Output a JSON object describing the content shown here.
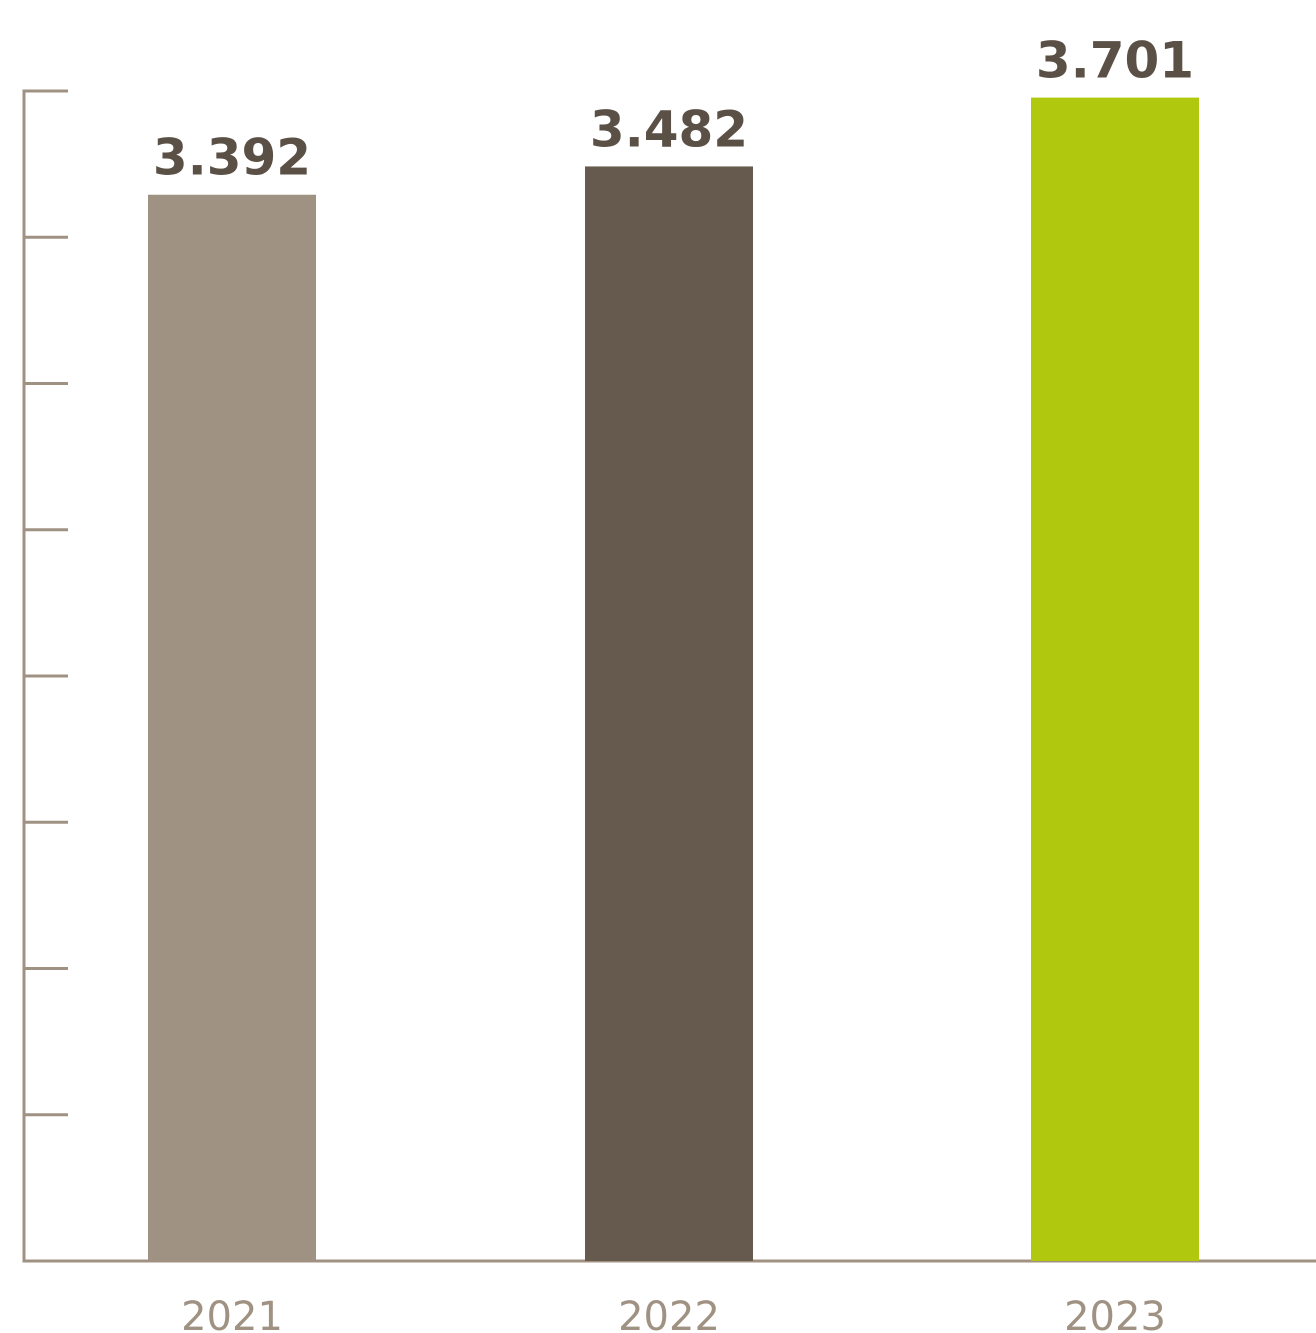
{
  "chart_data": {
    "type": "bar",
    "categories": [
      "2021",
      "2022",
      "2023"
    ],
    "values": [
      3392,
      3482,
      3701
    ],
    "value_labels": [
      "3.392",
      "3.482",
      "3.701"
    ],
    "title": "",
    "xlabel": "",
    "ylabel": "",
    "ylim": [
      0,
      3722
    ],
    "y_tick_count": 8,
    "y_tick_labels_shown": false,
    "grid": false,
    "legend": "none",
    "colors": {
      "bars": [
        "#a09283",
        "#665a4e",
        "#b0c90f"
      ],
      "value_labels": "#5b5045",
      "category_labels": "#a09283",
      "axis": "#a09283"
    }
  }
}
